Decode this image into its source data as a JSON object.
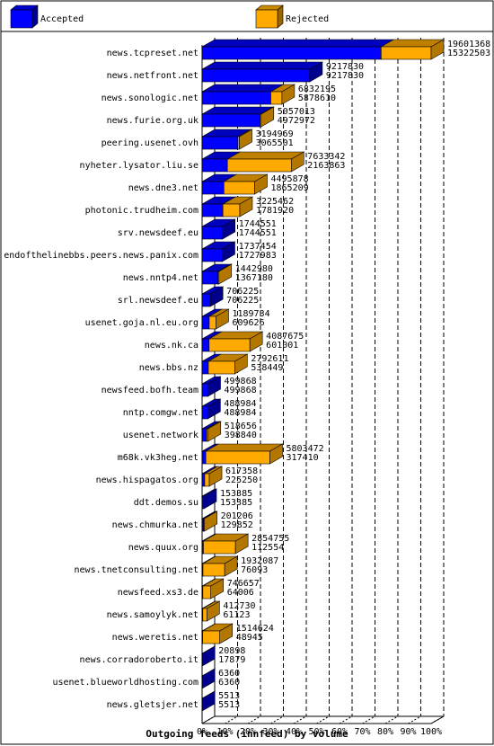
{
  "chart_data": {
    "type": "bar",
    "title": "Outgoing feeds (innfeed) by volume",
    "legend": {
      "placement": "top",
      "entries": [
        "Accepted",
        "Rejected"
      ]
    },
    "colors": {
      "accepted": "#0000ff",
      "rejected": "#ffaa00",
      "rejected_shade": "#b47000"
    },
    "xlim": [
      0,
      100
    ],
    "x_ticks": [
      "0%",
      "10%",
      "20%",
      "30%",
      "40%",
      "50%",
      "60%",
      "70%",
      "80%",
      "90%",
      "100%"
    ],
    "grid": "vertical dashed",
    "categories": [
      "news.tcpreset.net",
      "news.netfront.net",
      "news.sonologic.net",
      "news.furie.org.uk",
      "peering.usenet.ovh",
      "nyheter.lysator.liu.se",
      "news.dne3.net",
      "photonic.trudheim.com",
      "srv.newsdeef.eu",
      "endofthelinebbs.peers.news.panix.com",
      "news.nntp4.net",
      "srl.newsdeef.eu",
      "usenet.goja.nl.eu.org",
      "news.nk.ca",
      "news.bbs.nz",
      "newsfeed.bofh.team",
      "nntp.comgw.net",
      "usenet.network",
      "m68k.vk3heg.net",
      "news.hispagatos.org",
      "ddt.demos.su",
      "news.chmurka.net",
      "news.quux.org",
      "news.tnetconsulting.net",
      "newsfeed.xs3.de",
      "news.samoylyk.net",
      "news.weretis.net",
      "news.corradoroberto.it",
      "usenet.blueworldhosting.com",
      "news.gletsjer.net"
    ],
    "offered": [
      "19601368",
      "9217830",
      "6832195",
      "5057013",
      "3194969",
      "7633342",
      "4495878",
      "3225462",
      "1744551",
      "1737454",
      "1442980",
      "706225",
      "1189734",
      "4087675",
      "2792611",
      "499868",
      "488984",
      "518656",
      "5803472",
      "617358",
      "153385",
      "201206",
      "2854755",
      "1932087",
      "746657",
      "412730",
      "1514624",
      "20898",
      "6360",
      "5513"
    ],
    "accepted": [
      "15322503",
      "9217830",
      "5878610",
      "4972972",
      "3065501",
      "2163863",
      "1865209",
      "1781920",
      "1744551",
      "1727983",
      "1367180",
      "706225",
      "609626",
      "601001",
      "538449",
      "499868",
      "488984",
      "398840",
      "317410",
      "225250",
      "153385",
      "129852",
      "112554",
      "76093",
      "64006",
      "61123",
      "48945",
      "17879",
      "6360",
      "5513"
    ]
  }
}
